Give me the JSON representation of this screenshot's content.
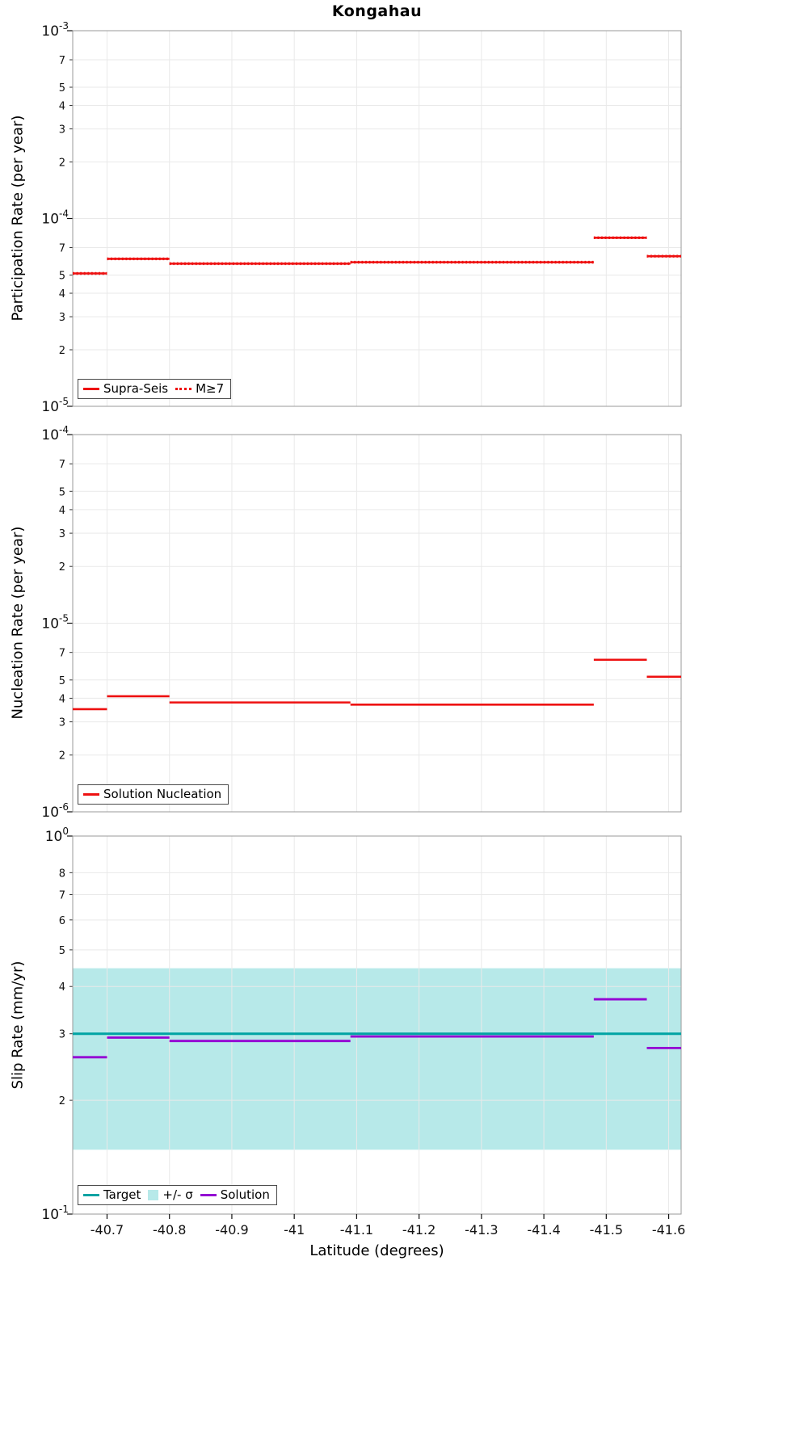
{
  "title": "Kongahau",
  "xlabel": "Latitude (degrees)",
  "colors": {
    "red": "#ee1111",
    "teal": "#00a3a3",
    "band": "#b7e9e9",
    "purple": "#9400d3",
    "grid": "#e9e9e9",
    "axis": "#9a9a9a"
  },
  "x": {
    "min": -40.645,
    "max": -41.62,
    "ticks": [
      -40.7,
      -40.8,
      -40.9,
      -41.0,
      -41.1,
      -41.2,
      -41.3,
      -41.4,
      -41.5,
      -41.6
    ],
    "tick_labels": [
      "-40.7",
      "-40.8",
      "-40.9",
      "-41",
      "-41.1",
      "-41.2",
      "-41.3",
      "-41.4",
      "-41.5",
      "-41.6"
    ]
  },
  "chart_data": [
    {
      "type": "line",
      "subtype": "step-segments",
      "ylabel": "Participation Rate (per year)",
      "ylog": {
        "min_exp": -5,
        "max_exp": -3,
        "minor_labels": [
          7,
          5,
          4,
          3,
          2
        ]
      },
      "series": [
        {
          "name": "Supra-Seis",
          "key": "supra-seis",
          "color": "red",
          "style": "solid",
          "width": 2.6,
          "segments": [
            [
              -40.645,
              -40.7,
              5.1e-05
            ],
            [
              -40.7,
              -40.8,
              6.1e-05
            ],
            [
              -40.8,
              -41.09,
              5.75e-05
            ],
            [
              -41.09,
              -41.48,
              5.85e-05
            ],
            [
              -41.48,
              -41.565,
              7.9e-05
            ],
            [
              -41.565,
              -41.62,
              6.3e-05
            ]
          ]
        },
        {
          "name": "M≥7",
          "key": "m-ge-7",
          "color": "red",
          "style": "dotted",
          "width": 3.4,
          "segments": [
            [
              -40.645,
              -40.7,
              5.1e-05
            ],
            [
              -40.7,
              -40.8,
              6.1e-05
            ],
            [
              -40.8,
              -41.09,
              5.75e-05
            ],
            [
              -41.09,
              -41.48,
              5.85e-05
            ],
            [
              -41.48,
              -41.565,
              7.9e-05
            ],
            [
              -41.565,
              -41.62,
              6.3e-05
            ]
          ]
        }
      ],
      "legend": [
        {
          "label": "Supra-Seis",
          "swatch": "solid",
          "color": "red"
        },
        {
          "label": "M≥7",
          "swatch": "dotted",
          "color": "red"
        }
      ]
    },
    {
      "type": "line",
      "subtype": "step-segments",
      "ylabel": "Nucleation Rate (per year)",
      "ylog": {
        "min_exp": -6,
        "max_exp": -4,
        "minor_labels": [
          7,
          5,
          4,
          3,
          2
        ]
      },
      "series": [
        {
          "name": "Solution Nucleation",
          "key": "solution-nucleation",
          "color": "red",
          "style": "solid",
          "width": 2.6,
          "segments": [
            [
              -40.645,
              -40.7,
              3.5e-06
            ],
            [
              -40.7,
              -40.8,
              4.1e-06
            ],
            [
              -40.8,
              -41.09,
              3.8e-06
            ],
            [
              -41.09,
              -41.48,
              3.7e-06
            ],
            [
              -41.48,
              -41.565,
              6.4e-06
            ],
            [
              -41.565,
              -41.62,
              5.2e-06
            ]
          ]
        }
      ],
      "legend": [
        {
          "label": "Solution Nucleation",
          "swatch": "solid",
          "color": "red"
        }
      ]
    },
    {
      "type": "line",
      "subtype": "step-segments",
      "ylabel": "Slip Rate (mm/yr)",
      "ylog": {
        "min_exp": -1,
        "max_exp": 0,
        "minor_labels": [
          8,
          7,
          6,
          5,
          4,
          3,
          2
        ]
      },
      "band": {
        "low": 0.148,
        "high": 0.447,
        "color": "band",
        "name": "+/- σ"
      },
      "series": [
        {
          "name": "Target",
          "key": "target",
          "color": "teal",
          "style": "solid",
          "width": 3,
          "segments": [
            [
              -40.645,
              -41.62,
              0.3
            ]
          ]
        },
        {
          "name": "Solution",
          "key": "solution",
          "color": "purple",
          "style": "solid",
          "width": 2.8,
          "segments": [
            [
              -40.645,
              -40.7,
              0.26
            ],
            [
              -40.7,
              -40.8,
              0.293
            ],
            [
              -40.8,
              -41.09,
              0.287
            ],
            [
              -41.09,
              -41.48,
              0.295
            ],
            [
              -41.48,
              -41.565,
              0.37
            ],
            [
              -41.565,
              -41.62,
              0.275
            ]
          ]
        }
      ],
      "legend": [
        {
          "label": "Target",
          "swatch": "solid",
          "color": "teal"
        },
        {
          "label": "+/- σ",
          "swatch": "patch",
          "color": "band"
        },
        {
          "label": "Solution",
          "swatch": "solid",
          "color": "purple"
        }
      ]
    }
  ]
}
